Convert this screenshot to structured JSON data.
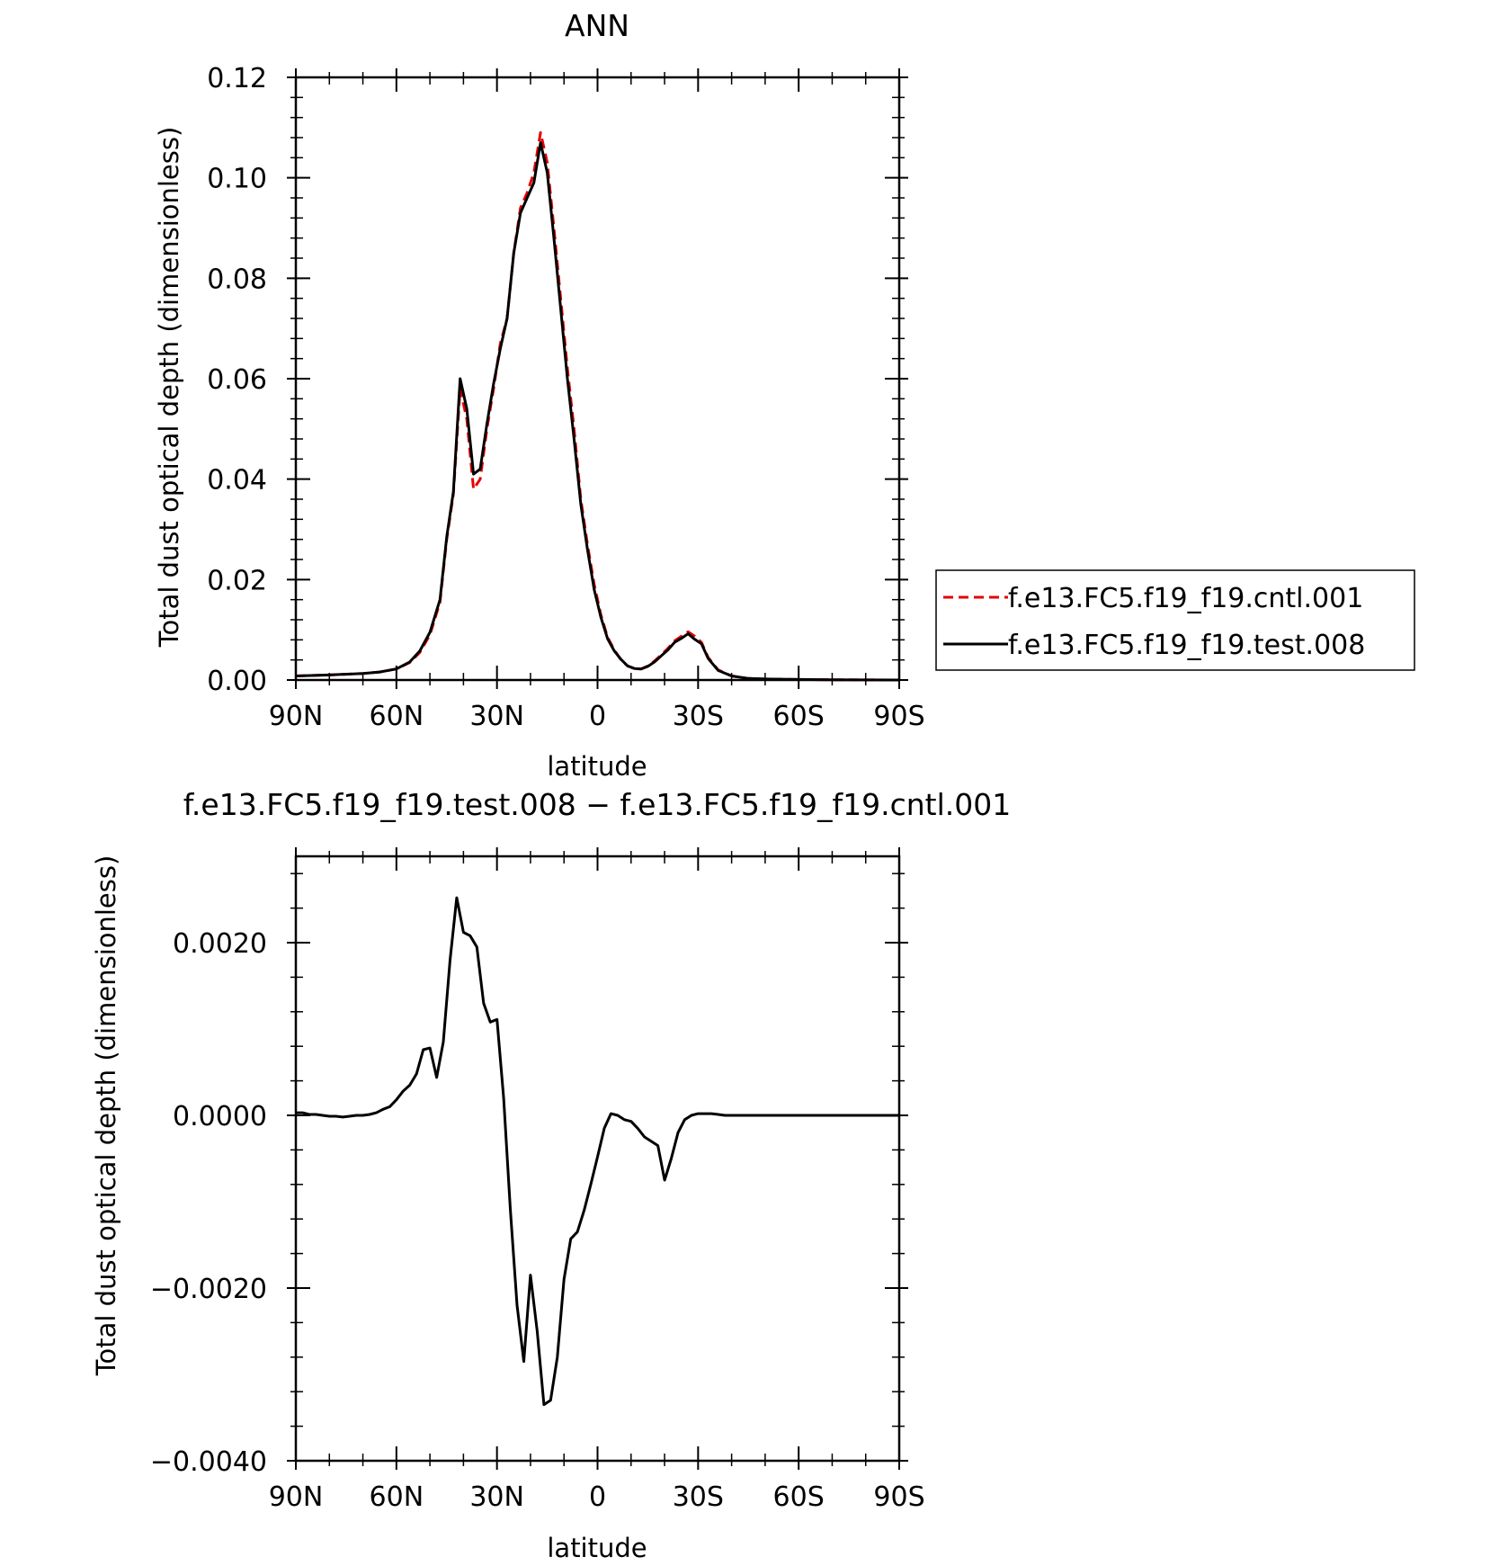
{
  "colors": {
    "cntl": "#e60000",
    "test": "#000000"
  },
  "chart_data": [
    {
      "type": "line",
      "title": "ANN",
      "xlabel": "latitude",
      "ylabel": "Total dust optical depth (dimensionless)",
      "xlim": [
        90,
        -90
      ],
      "ylim": [
        0.0,
        0.12
      ],
      "xticks": [
        {
          "value": 90,
          "label": "90N"
        },
        {
          "value": 60,
          "label": "60N"
        },
        {
          "value": 30,
          "label": "30N"
        },
        {
          "value": 0,
          "label": "0"
        },
        {
          "value": -30,
          "label": "30S"
        },
        {
          "value": -60,
          "label": "60S"
        },
        {
          "value": -90,
          "label": "90S"
        }
      ],
      "yticks": [
        {
          "value": 0.0,
          "label": "0.00"
        },
        {
          "value": 0.02,
          "label": "0.02"
        },
        {
          "value": 0.04,
          "label": "0.04"
        },
        {
          "value": 0.06,
          "label": "0.06"
        },
        {
          "value": 0.08,
          "label": "0.08"
        },
        {
          "value": 0.1,
          "label": "0.10"
        },
        {
          "value": 0.12,
          "label": "0.12"
        }
      ],
      "legend_position": "right",
      "series": [
        {
          "name": "f.e13.FC5.f19_f19.cntl.001",
          "style": "dashed",
          "color": "#e60000",
          "x": [
            90,
            80,
            70,
            65,
            60,
            56,
            53,
            50,
            47,
            45,
            43,
            41,
            39,
            37,
            35,
            33,
            31,
            29,
            27,
            25,
            23,
            21,
            19,
            17,
            15,
            13,
            11,
            9,
            7,
            5,
            3,
            1,
            -1,
            -3,
            -5,
            -7,
            -9,
            -11,
            -13,
            -15,
            -17,
            -19,
            -21,
            -23,
            -25,
            -27,
            -29,
            -31,
            -33,
            -36,
            -40,
            -45,
            -50,
            -60,
            -70,
            -80,
            -90
          ],
          "y": [
            0.0008,
            0.001,
            0.0013,
            0.0016,
            0.0022,
            0.0035,
            0.0055,
            0.009,
            0.0155,
            0.028,
            0.037,
            0.058,
            0.052,
            0.038,
            0.04,
            0.05,
            0.058,
            0.067,
            0.072,
            0.085,
            0.094,
            0.097,
            0.101,
            0.109,
            0.103,
            0.09,
            0.076,
            0.062,
            0.05,
            0.036,
            0.027,
            0.019,
            0.013,
            0.0085,
            0.006,
            0.004,
            0.0028,
            0.0023,
            0.0022,
            0.0028,
            0.0038,
            0.005,
            0.0063,
            0.0078,
            0.0087,
            0.0096,
            0.0087,
            0.0075,
            0.0045,
            0.002,
            0.0008,
            0.0003,
            0.0002,
            0.0001,
            5e-05,
            2e-05,
            0.0
          ]
        },
        {
          "name": "f.e13.FC5.f19_f19.test.008",
          "style": "solid",
          "color": "#000000",
          "x": [
            90,
            80,
            70,
            65,
            60,
            56,
            53,
            50,
            47,
            45,
            43,
            41,
            39,
            37,
            35,
            33,
            31,
            29,
            27,
            25,
            23,
            21,
            19,
            17,
            15,
            13,
            11,
            9,
            7,
            5,
            3,
            1,
            -1,
            -3,
            -5,
            -7,
            -9,
            -11,
            -13,
            -15,
            -17,
            -19,
            -21,
            -23,
            -25,
            -27,
            -29,
            -31,
            -33,
            -36,
            -40,
            -45,
            -50,
            -60,
            -70,
            -80,
            -90
          ],
          "y": [
            0.0008,
            0.001,
            0.0013,
            0.0016,
            0.0022,
            0.0036,
            0.0058,
            0.0095,
            0.016,
            0.0285,
            0.0375,
            0.06,
            0.054,
            0.041,
            0.042,
            0.051,
            0.059,
            0.066,
            0.072,
            0.085,
            0.093,
            0.096,
            0.099,
            0.107,
            0.101,
            0.088,
            0.074,
            0.06,
            0.048,
            0.035,
            0.026,
            0.018,
            0.0125,
            0.0082,
            0.0058,
            0.0041,
            0.0028,
            0.0023,
            0.0022,
            0.0027,
            0.0036,
            0.0048,
            0.006,
            0.0075,
            0.0083,
            0.0092,
            0.0081,
            0.0072,
            0.0043,
            0.0019,
            0.0008,
            0.0003,
            0.0002,
            0.0001,
            5e-05,
            2e-05,
            0.0
          ]
        }
      ]
    },
    {
      "type": "line",
      "title": "f.e13.FC5.f19_f19.test.008 − f.e13.FC5.f19_f19.cntl.001",
      "xlabel": "latitude",
      "ylabel": "Total dust optical depth (dimensionless)",
      "xlim": [
        90,
        -90
      ],
      "ylim": [
        -0.004,
        0.003
      ],
      "xticks": [
        {
          "value": 90,
          "label": "90N"
        },
        {
          "value": 60,
          "label": "60N"
        },
        {
          "value": 30,
          "label": "30N"
        },
        {
          "value": 0,
          "label": "0"
        },
        {
          "value": -30,
          "label": "30S"
        },
        {
          "value": -60,
          "label": "60S"
        },
        {
          "value": -90,
          "label": "90S"
        }
      ],
      "yticks": [
        {
          "value": -0.004,
          "label": "−0.0040"
        },
        {
          "value": -0.002,
          "label": "−0.0020"
        },
        {
          "value": 0.0,
          "label": "0.0000"
        },
        {
          "value": 0.002,
          "label": "0.0020"
        }
      ],
      "series": [
        {
          "style": "solid",
          "color": "#000000",
          "x": [
            90,
            88,
            86,
            84,
            82,
            80,
            78,
            76,
            74,
            72,
            70,
            68,
            66,
            64,
            62,
            60,
            58,
            56,
            54,
            52,
            50,
            48,
            46,
            44,
            42,
            40,
            38,
            36,
            34,
            32,
            30,
            28,
            26,
            24,
            22,
            20,
            18,
            16,
            14,
            12,
            10,
            8,
            6,
            4,
            2,
            0,
            -2,
            -4,
            -6,
            -8,
            -10,
            -12,
            -14,
            -16,
            -18,
            -20,
            -22,
            -24,
            -26,
            -28,
            -30,
            -32,
            -34,
            -36,
            -38,
            -40,
            -42,
            -44,
            -46,
            -50,
            -60,
            -70,
            -80,
            -90
          ],
          "y": [
            3e-05,
            3e-05,
            1e-05,
            1e-05,
            0.0,
            -1e-05,
            -1e-05,
            -2e-05,
            -1e-05,
            0.0,
            0.0,
            1e-05,
            3e-05,
            7e-05,
            0.0001,
            0.00018,
            0.00028,
            0.00035,
            0.00048,
            0.00076,
            0.00078,
            0.00044,
            0.00085,
            0.0018,
            0.00252,
            0.00212,
            0.00208,
            0.00195,
            0.0013,
            0.00108,
            0.00111,
            0.0002,
            -0.0011,
            -0.0022,
            -0.00285,
            -0.00185,
            -0.0025,
            -0.00335,
            -0.0033,
            -0.0028,
            -0.0019,
            -0.00143,
            -0.00135,
            -0.0011,
            -0.0008,
            -0.00048,
            -0.00015,
            2e-05,
            0.0,
            -5e-05,
            -7e-05,
            -0.00015,
            -0.00025,
            -0.0003,
            -0.00035,
            -0.00075,
            -0.0005,
            -0.0002,
            -5e-05,
            0.0,
            2e-05,
            2e-05,
            2e-05,
            1e-05,
            0.0,
            0.0,
            0.0,
            0.0,
            0.0,
            0.0,
            0.0,
            0.0,
            0.0,
            0.0
          ]
        }
      ]
    }
  ]
}
